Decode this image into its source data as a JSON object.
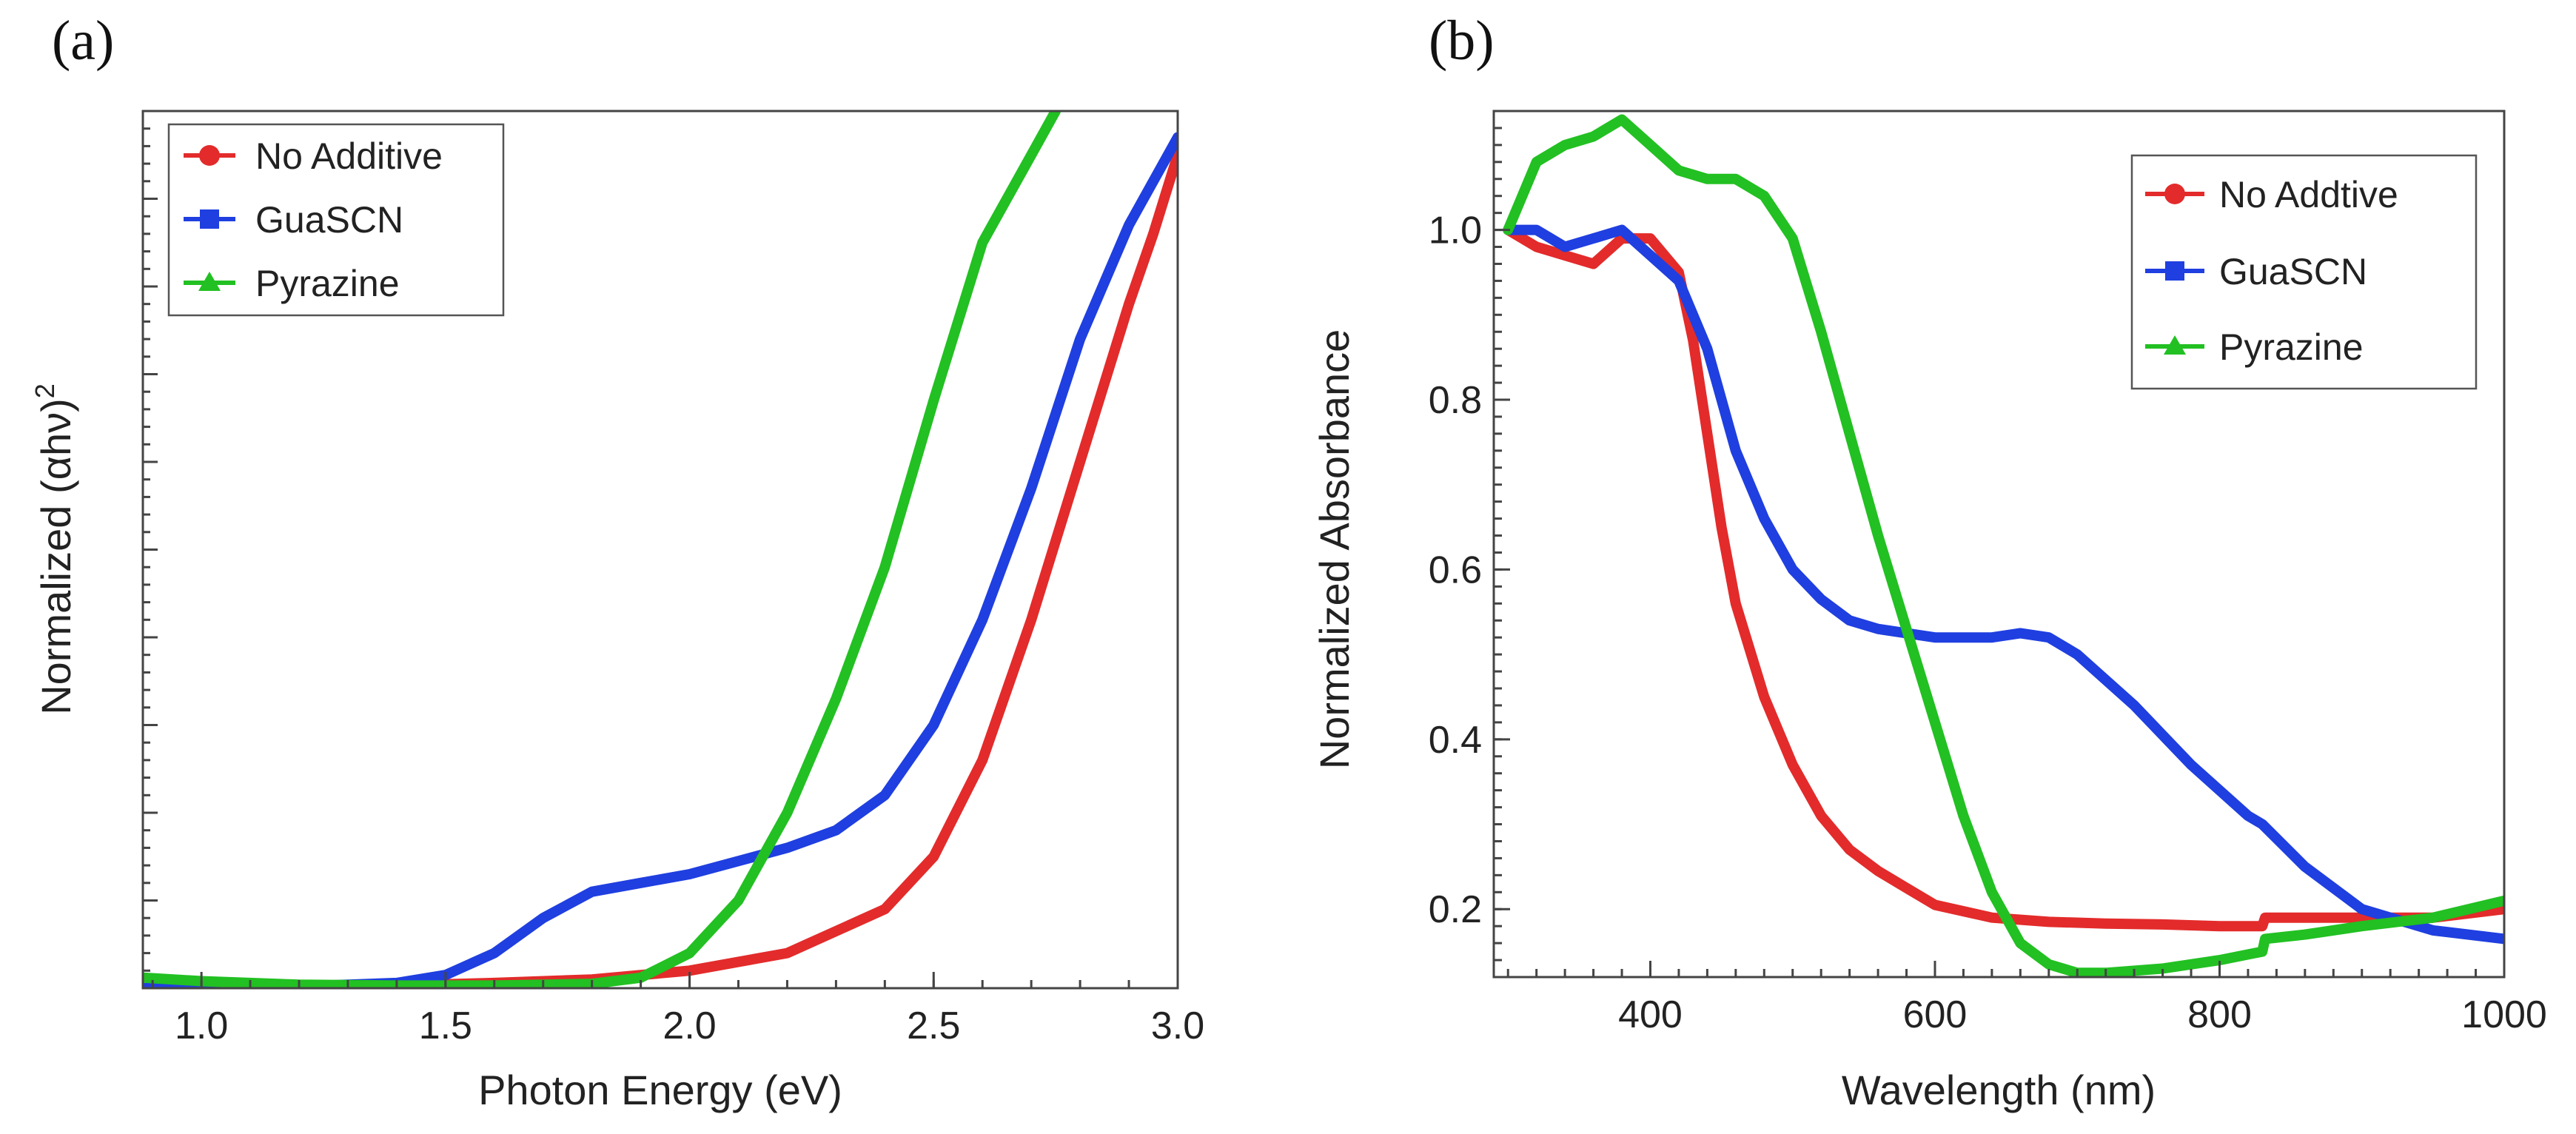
{
  "chart_data": [
    {
      "type": "line",
      "panel_label": "(a)",
      "xlabel": "Photon Energy (eV)",
      "ylabel_main": "Normalized (αhν)",
      "ylabel_sup": "2",
      "xlim": [
        0.88,
        3.0
      ],
      "ylim": [
        0,
        1.0
      ],
      "x_ticks": [
        1.0,
        1.5,
        2.0,
        2.5,
        3.0
      ],
      "x_tick_labels": [
        "1.0",
        "1.5",
        "2.0",
        "2.5",
        "3.0"
      ],
      "y_tick_labels_shown": false,
      "legend_position": "top-left",
      "series": [
        {
          "name": "No Additive",
          "color": "#e32b2b",
          "marker": "circle",
          "x": [
            0.88,
            1.0,
            1.2,
            1.4,
            1.6,
            1.8,
            2.0,
            2.2,
            2.4,
            2.5,
            2.6,
            2.7,
            2.8,
            2.9,
            2.95,
            3.0
          ],
          "y": [
            0.0,
            0.0,
            0.0,
            0.003,
            0.006,
            0.01,
            0.02,
            0.04,
            0.09,
            0.15,
            0.26,
            0.42,
            0.6,
            0.78,
            0.86,
            0.95
          ]
        },
        {
          "name": "GuaSCN",
          "color": "#1f3fe0",
          "marker": "square",
          "x": [
            0.88,
            1.0,
            1.2,
            1.4,
            1.5,
            1.6,
            1.7,
            1.8,
            1.9,
            2.0,
            2.1,
            2.2,
            2.3,
            2.4,
            2.5,
            2.6,
            2.7,
            2.8,
            2.9,
            3.0
          ],
          "y": [
            0.0,
            0.0,
            0.002,
            0.006,
            0.015,
            0.04,
            0.08,
            0.11,
            0.12,
            0.13,
            0.145,
            0.16,
            0.18,
            0.22,
            0.3,
            0.42,
            0.57,
            0.74,
            0.87,
            0.97
          ]
        },
        {
          "name": "Pyrazine",
          "color": "#22c022",
          "marker": "triangle",
          "x": [
            0.88,
            1.0,
            1.2,
            1.4,
            1.6,
            1.8,
            1.9,
            2.0,
            2.1,
            2.2,
            2.3,
            2.4,
            2.5,
            2.6,
            2.7,
            2.75
          ],
          "y": [
            0.012,
            0.008,
            0.004,
            0.003,
            0.003,
            0.005,
            0.012,
            0.04,
            0.1,
            0.2,
            0.33,
            0.48,
            0.67,
            0.85,
            0.95,
            1.0
          ]
        }
      ]
    },
    {
      "type": "line",
      "panel_label": "(b)",
      "xlabel": "Wavelength (nm)",
      "ylabel": "Normalized Absorbance",
      "xlim": [
        290,
        1000
      ],
      "ylim": [
        0.12,
        1.14
      ],
      "x_ticks": [
        400,
        600,
        800,
        1000
      ],
      "x_tick_labels": [
        "400",
        "600",
        "800",
        "1000"
      ],
      "y_ticks": [
        0.2,
        0.4,
        0.6,
        0.8,
        1.0
      ],
      "y_tick_labels": [
        "0.2",
        "0.4",
        "0.6",
        "0.8",
        "1.0"
      ],
      "legend_position": "top-right",
      "series": [
        {
          "name": "No Addtive",
          "color": "#e32b2b",
          "marker": "circle",
          "x": [
            300,
            320,
            340,
            360,
            380,
            400,
            420,
            430,
            440,
            450,
            460,
            480,
            500,
            520,
            540,
            560,
            580,
            600,
            640,
            680,
            720,
            760,
            800,
            830,
            832,
            860,
            900,
            950,
            1000
          ],
          "y": [
            1.0,
            0.98,
            0.97,
            0.96,
            0.99,
            0.99,
            0.95,
            0.87,
            0.76,
            0.65,
            0.56,
            0.45,
            0.37,
            0.31,
            0.27,
            0.245,
            0.225,
            0.205,
            0.19,
            0.185,
            0.183,
            0.182,
            0.18,
            0.18,
            0.19,
            0.19,
            0.19,
            0.19,
            0.2
          ]
        },
        {
          "name": "GuaSCN",
          "color": "#1f3fe0",
          "marker": "square",
          "x": [
            300,
            320,
            340,
            360,
            380,
            400,
            420,
            440,
            460,
            480,
            500,
            520,
            540,
            560,
            580,
            600,
            640,
            660,
            680,
            700,
            740,
            780,
            820,
            830,
            860,
            900,
            950,
            1000
          ],
          "y": [
            1.0,
            1.0,
            0.98,
            0.99,
            1.0,
            0.97,
            0.94,
            0.86,
            0.74,
            0.66,
            0.6,
            0.565,
            0.54,
            0.53,
            0.525,
            0.52,
            0.52,
            0.525,
            0.52,
            0.5,
            0.44,
            0.37,
            0.31,
            0.3,
            0.25,
            0.2,
            0.175,
            0.165
          ]
        },
        {
          "name": "Pyrazine",
          "color": "#22c022",
          "marker": "triangle",
          "x": [
            300,
            320,
            340,
            360,
            380,
            400,
            420,
            440,
            460,
            480,
            500,
            520,
            540,
            560,
            580,
            600,
            620,
            640,
            660,
            680,
            700,
            720,
            760,
            800,
            830,
            832,
            860,
            900,
            950,
            1000
          ],
          "y": [
            1.0,
            1.08,
            1.1,
            1.11,
            1.13,
            1.1,
            1.07,
            1.06,
            1.06,
            1.04,
            0.99,
            0.88,
            0.76,
            0.64,
            0.53,
            0.42,
            0.31,
            0.22,
            0.16,
            0.135,
            0.125,
            0.125,
            0.13,
            0.14,
            0.15,
            0.165,
            0.17,
            0.18,
            0.19,
            0.21
          ]
        }
      ]
    }
  ]
}
